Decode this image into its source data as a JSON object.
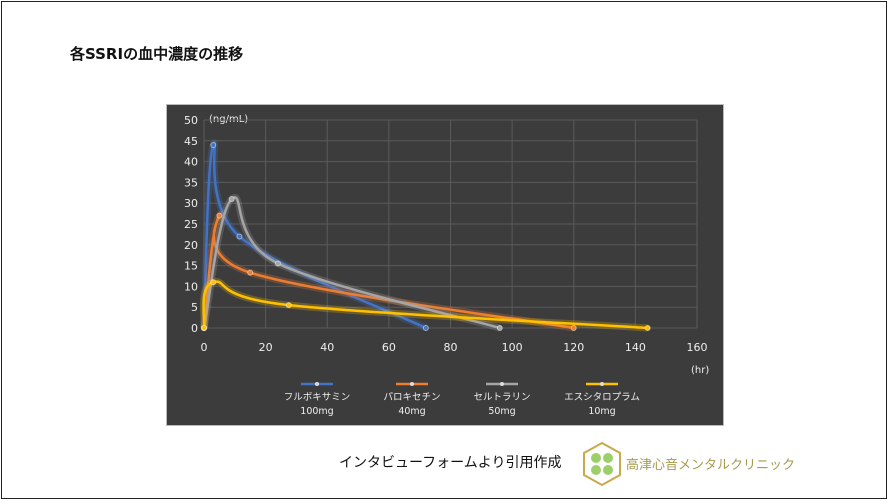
{
  "title": "各SSRIの血中濃度の推移",
  "source": "インタビューフォームより引用作成",
  "clinic": "高津心音メンタルクリニック",
  "chart_data": {
    "type": "line",
    "xlabel": "(hr)",
    "ylabel": "(ng/mL)",
    "xlim": [
      0,
      160
    ],
    "ylim": [
      0,
      50
    ],
    "xticks": [
      0,
      20,
      40,
      60,
      80,
      100,
      120,
      140,
      160
    ],
    "yticks": [
      0,
      5,
      10,
      15,
      20,
      25,
      30,
      35,
      40,
      45,
      50
    ],
    "grid": true,
    "legend": "bottom",
    "smooth": true,
    "series": [
      {
        "name": "フルボキサミン",
        "dose": "100mg",
        "color": "#4472c4",
        "points": [
          [
            0,
            0
          ],
          [
            3,
            44
          ],
          [
            11.5,
            22
          ],
          [
            72,
            0
          ]
        ]
      },
      {
        "name": "パロキセチン",
        "dose": "40mg",
        "color": "#ed7d31",
        "points": [
          [
            0,
            0
          ],
          [
            5,
            27
          ],
          [
            15,
            13.3
          ],
          [
            120,
            0
          ]
        ]
      },
      {
        "name": "セルトラリン",
        "dose": "50mg",
        "color": "#a5a5a5",
        "points": [
          [
            0,
            0
          ],
          [
            9,
            31
          ],
          [
            24,
            15.5
          ],
          [
            96,
            0
          ]
        ]
      },
      {
        "name": "エスシタロプラム",
        "dose": "10mg",
        "color": "#ffc000",
        "points": [
          [
            0,
            0
          ],
          [
            3,
            11
          ],
          [
            27.5,
            5.5
          ],
          [
            144,
            0
          ]
        ]
      }
    ]
  }
}
